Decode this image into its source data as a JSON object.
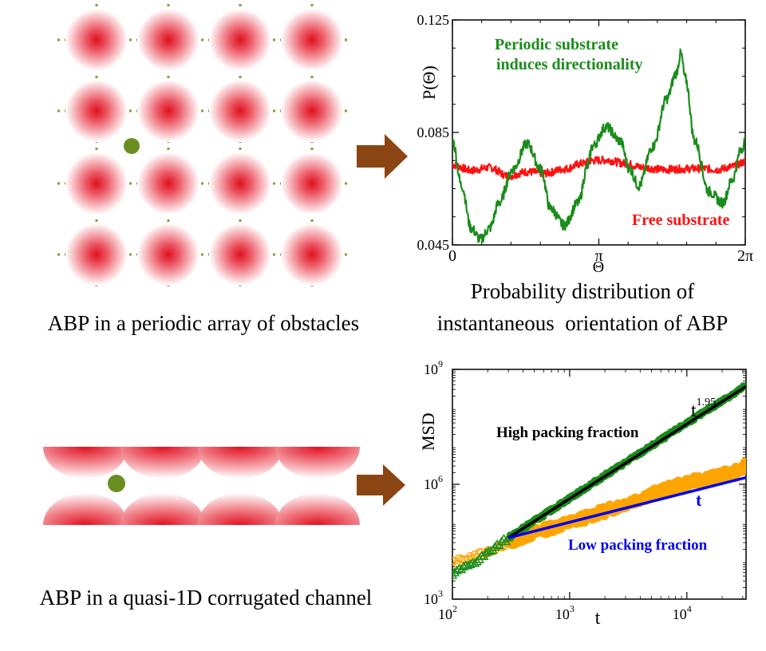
{
  "colors": {
    "obstacle": "#e01020",
    "particle": "#6b8e23",
    "dotted": "#8a9a3a",
    "arrow": "#8b4513",
    "green_series": "#1a8c1a",
    "red_series": "#ff1010",
    "orange_series": "#ffa500",
    "blue_fit": "#0000ee",
    "black_fit": "#000000"
  },
  "captions": {
    "top_left": "ABP in a periodic array of obstacles",
    "top_right_line1": "Probability distribution of",
    "top_right_line2": "instantaneous  orientation of ABP",
    "bottom_left": "ABP in a quasi-1D corrugated channel"
  },
  "chart_data": [
    {
      "type": "line",
      "title": "",
      "xlabel": "Θ",
      "ylabel": "P(Θ)",
      "xlim": [
        0,
        6.2832
      ],
      "ylim": [
        0.045,
        0.125
      ],
      "xticks": [
        {
          "value": 0,
          "label": "0"
        },
        {
          "value": 3.1416,
          "label": "π"
        },
        {
          "value": 6.2832,
          "label": "2π"
        }
      ],
      "yticks": [
        {
          "value": 0.045,
          "label": "0.045"
        },
        {
          "value": 0.085,
          "label": "0.085"
        },
        {
          "value": 0.125,
          "label": "0.125"
        }
      ],
      "series": [
        {
          "name": "Free substrate",
          "color": "#ff1010",
          "x": [
            0,
            0.4,
            0.8,
            1.2,
            1.6,
            2.0,
            2.4,
            2.8,
            3.0,
            3.3,
            3.7,
            4.1,
            4.5,
            4.9,
            5.3,
            5.7,
            6.0,
            6.2832
          ],
          "y": [
            0.0735,
            0.0715,
            0.0725,
            0.0695,
            0.071,
            0.0705,
            0.072,
            0.074,
            0.075,
            0.0752,
            0.074,
            0.0725,
            0.0718,
            0.072,
            0.0722,
            0.0718,
            0.0728,
            0.0745
          ]
        },
        {
          "name": "Periodic substrate",
          "color": "#1a8c1a",
          "x": [
            0,
            0.2,
            0.4,
            0.6,
            0.8,
            1.0,
            1.3,
            1.6,
            1.9,
            2.1,
            2.4,
            2.7,
            2.9,
            3.0,
            3.3,
            3.6,
            3.8,
            4.0,
            4.3,
            4.6,
            4.8,
            4.9,
            5.0,
            5.2,
            5.5,
            5.8,
            6.0,
            6.2,
            6.2832
          ],
          "y": [
            0.082,
            0.066,
            0.051,
            0.047,
            0.051,
            0.06,
            0.072,
            0.081,
            0.072,
            0.058,
            0.052,
            0.06,
            0.073,
            0.08,
            0.087,
            0.082,
            0.072,
            0.066,
            0.08,
            0.097,
            0.106,
            0.113,
            0.104,
            0.082,
            0.064,
            0.06,
            0.068,
            0.079,
            0.082
          ]
        }
      ],
      "annotations": [
        {
          "text": "Periodic substrate",
          "color": "#1a8c1a"
        },
        {
          "text": "induces directionality",
          "color": "#1a8c1a"
        },
        {
          "text": "Free substrate",
          "color": "#ff1010"
        }
      ]
    },
    {
      "type": "line",
      "title": "",
      "xlabel": "t",
      "ylabel": "MSD",
      "xscale": "log",
      "yscale": "log",
      "xlim": [
        100,
        32000
      ],
      "ylim": [
        1000,
        1000000000
      ],
      "xticks": [
        {
          "value": 100,
          "base": "10",
          "exp": "2"
        },
        {
          "value": 1000,
          "base": "10",
          "exp": "3"
        },
        {
          "value": 10000,
          "base": "10",
          "exp": "4"
        }
      ],
      "yticks": [
        {
          "value": 1000,
          "base": "10",
          "exp": "3"
        },
        {
          "value": 1000000,
          "base": "10",
          "exp": "6"
        },
        {
          "value": 1000000000,
          "base": "10",
          "exp": "9"
        }
      ],
      "series": [
        {
          "name": "High packing fraction (data)",
          "color": "#1a8c1a",
          "x": [
            100,
            150,
            200,
            300,
            500,
            1000,
            2000,
            5000,
            10000,
            20000,
            32000
          ],
          "y": [
            4500,
            9000,
            16000,
            40000,
            110000,
            430000,
            1700000,
            10000000,
            40000000,
            150000000,
            380000000
          ]
        },
        {
          "name": "Low packing fraction (data)",
          "color": "#ffa500",
          "x": [
            100,
            150,
            200,
            300,
            500,
            1000,
            2000,
            5000,
            10000,
            20000,
            32000
          ],
          "y": [
            9000,
            13000,
            17000,
            30000,
            55000,
            100000,
            200000,
            550000,
            1100000,
            1700000,
            3000000
          ]
        },
        {
          "name": "t^1.95 fit",
          "color": "#000000",
          "x": [
            300,
            32000
          ],
          "y": [
            40000,
            360000000
          ]
        },
        {
          "name": "t fit",
          "color": "#0000ee",
          "x": [
            300,
            32000
          ],
          "y": [
            40000,
            1500000
          ]
        }
      ],
      "annotations": [
        {
          "text": "High packing fraction",
          "color": "#000000"
        },
        {
          "text": "Low packing fraction",
          "color": "#0000ee"
        },
        {
          "text": "t",
          "color": "#0000ee"
        },
        {
          "text": "t",
          "exp": "1.95",
          "color": "#000000"
        }
      ]
    }
  ]
}
